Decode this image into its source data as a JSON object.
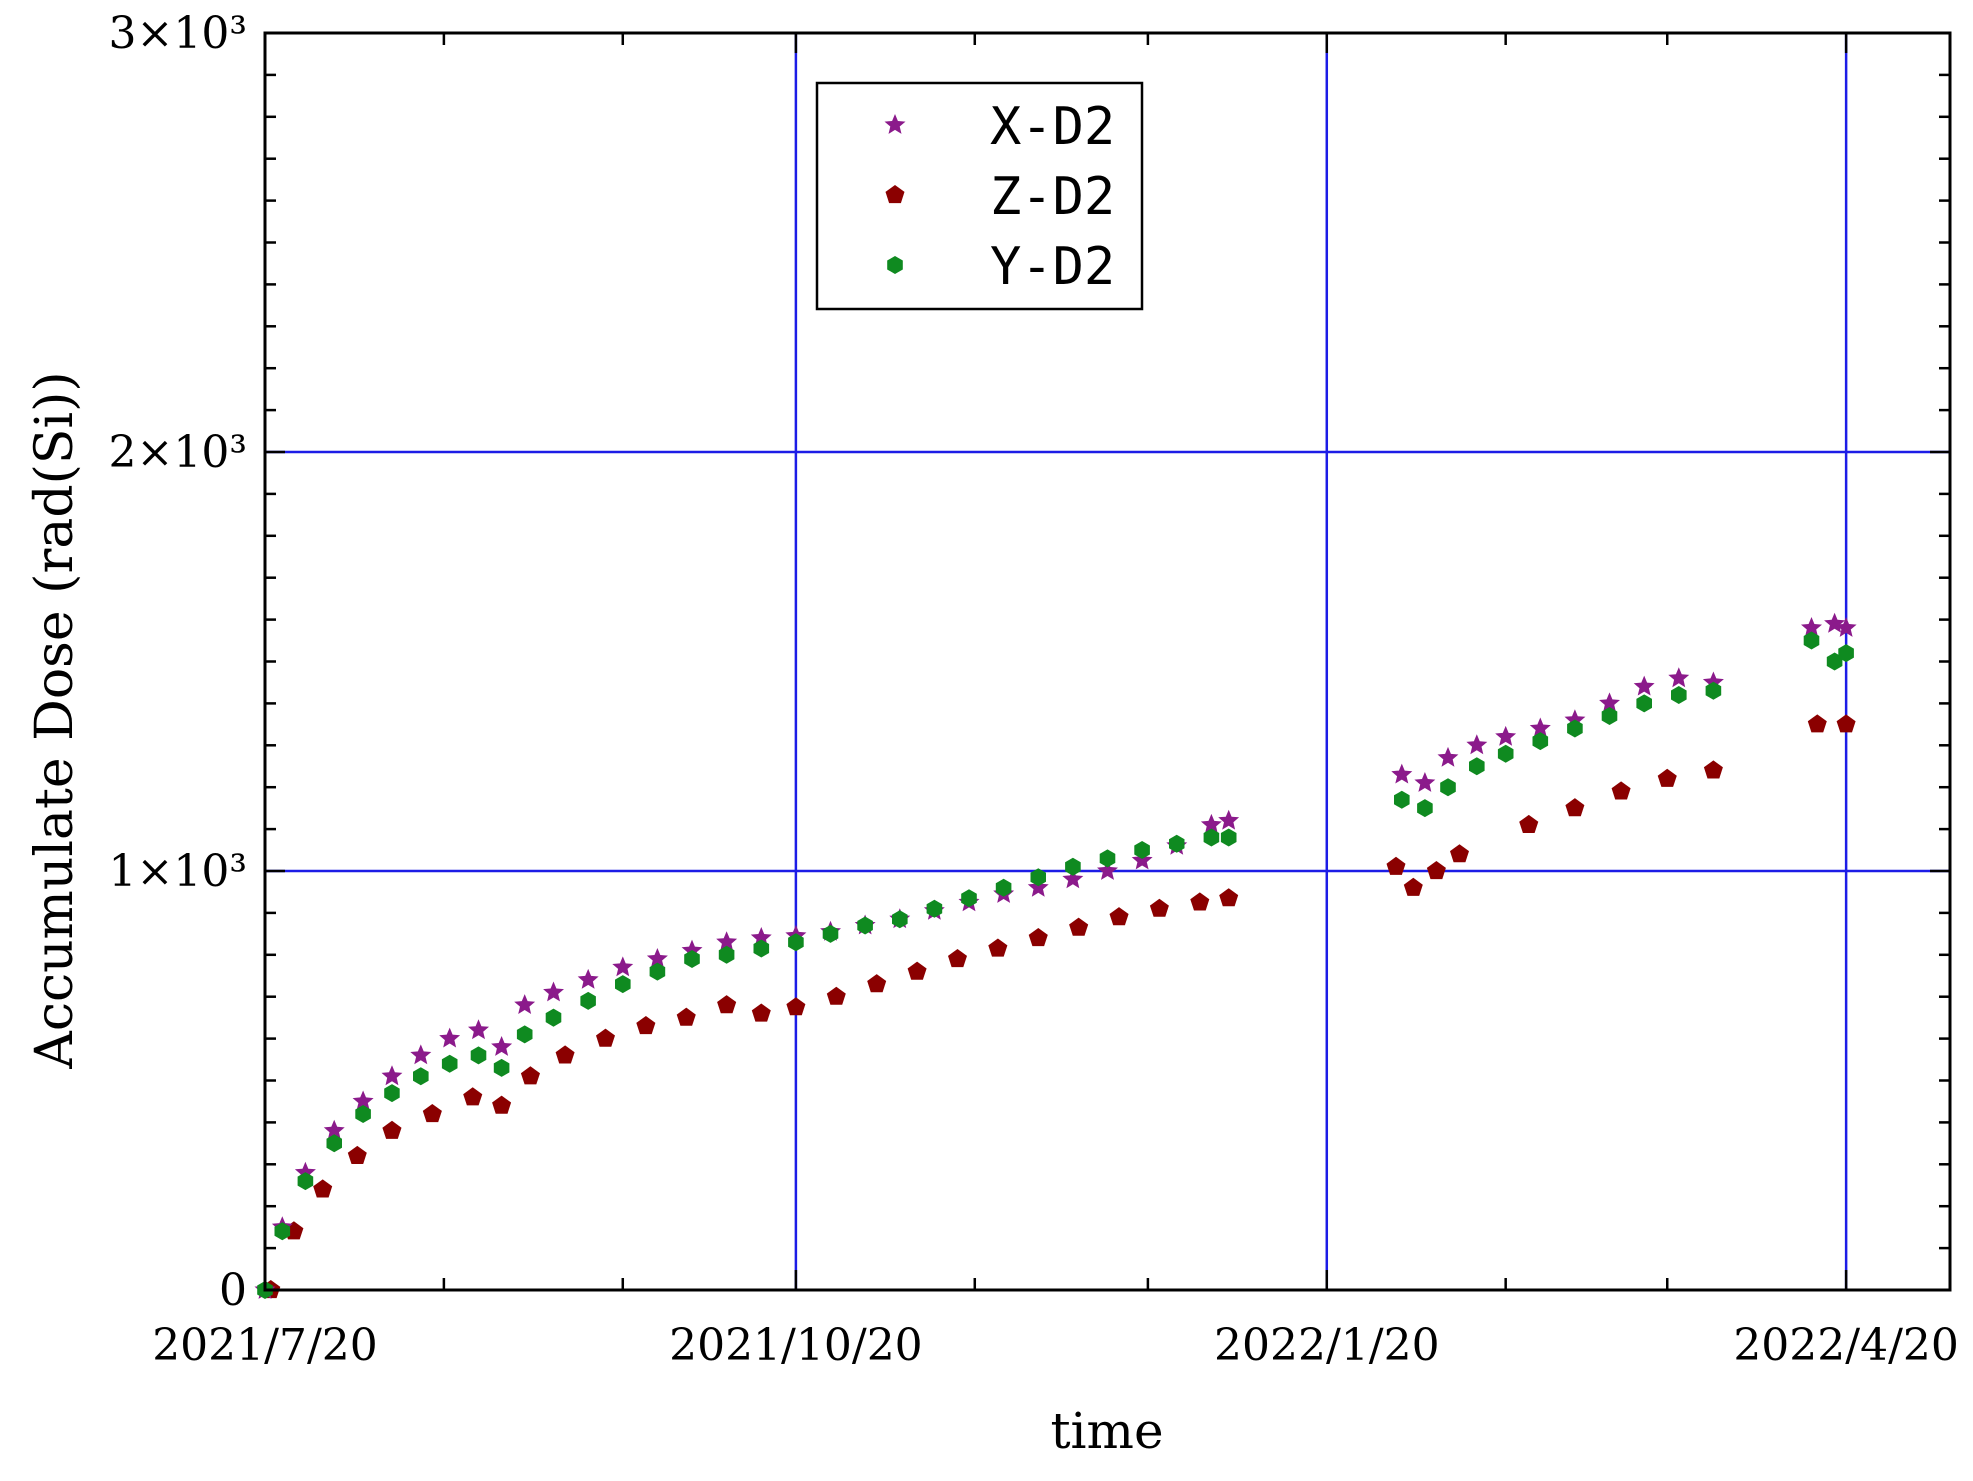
{
  "chart_data": {
    "type": "scatter",
    "title": "",
    "xlabel": "time",
    "ylabel": "Accumulate Dose (rad(Si))",
    "x_axis": {
      "type": "date",
      "range": [
        "2021-07-20",
        "2022-05-08"
      ],
      "ticks": [
        {
          "date": "2021-07-20",
          "label": "2021/7/20"
        },
        {
          "date": "2021-10-20",
          "label": "2021/10/20"
        },
        {
          "date": "2022-01-20",
          "label": "2022/1/20"
        },
        {
          "date": "2022-04-20",
          "label": "2022/4/20"
        }
      ],
      "minor_ticks": [
        "2021-08-20",
        "2021-09-20",
        "2021-11-20",
        "2021-12-20",
        "2022-02-20",
        "2022-03-20"
      ]
    },
    "y_axis": {
      "range": [
        0,
        3000
      ],
      "ticks": [
        {
          "value": 0,
          "label": "0"
        },
        {
          "value": 1000,
          "label": "1×10³"
        },
        {
          "value": 2000,
          "label": "2×10³"
        },
        {
          "value": 3000,
          "label": "3×10³"
        }
      ],
      "minor_step": 100
    },
    "grid": true,
    "grid_color": "#1c1ce6",
    "legend": {
      "position": "top-center"
    },
    "series": [
      {
        "name": "X-D2",
        "marker": "star",
        "color": "#8b1a8b",
        "points": [
          [
            "2021-07-20",
            0
          ],
          [
            "2021-07-23",
            150
          ],
          [
            "2021-07-27",
            280
          ],
          [
            "2021-08-01",
            380
          ],
          [
            "2021-08-06",
            450
          ],
          [
            "2021-08-11",
            510
          ],
          [
            "2021-08-16",
            560
          ],
          [
            "2021-08-21",
            600
          ],
          [
            "2021-08-26",
            620
          ],
          [
            "2021-08-30",
            580
          ],
          [
            "2021-09-03",
            680
          ],
          [
            "2021-09-08",
            710
          ],
          [
            "2021-09-14",
            740
          ],
          [
            "2021-09-20",
            770
          ],
          [
            "2021-09-26",
            790
          ],
          [
            "2021-10-02",
            810
          ],
          [
            "2021-10-08",
            830
          ],
          [
            "2021-10-14",
            840
          ],
          [
            "2021-10-20",
            845
          ],
          [
            "2021-10-26",
            855
          ],
          [
            "2021-11-01",
            870
          ],
          [
            "2021-11-07",
            885
          ],
          [
            "2021-11-13",
            905
          ],
          [
            "2021-11-19",
            925
          ],
          [
            "2021-11-25",
            945
          ],
          [
            "2021-12-01",
            960
          ],
          [
            "2021-12-07",
            980
          ],
          [
            "2021-12-13",
            1000
          ],
          [
            "2021-12-19",
            1025
          ],
          [
            "2021-12-25",
            1060
          ],
          [
            "2021-12-31",
            1110
          ],
          [
            "2022-01-03",
            1120
          ],
          [
            "2022-02-02",
            1230
          ],
          [
            "2022-02-06",
            1210
          ],
          [
            "2022-02-10",
            1270
          ],
          [
            "2022-02-15",
            1300
          ],
          [
            "2022-02-20",
            1320
          ],
          [
            "2022-02-26",
            1340
          ],
          [
            "2022-03-04",
            1360
          ],
          [
            "2022-03-10",
            1400
          ],
          [
            "2022-03-16",
            1440
          ],
          [
            "2022-03-22",
            1460
          ],
          [
            "2022-03-28",
            1450
          ],
          [
            "2022-04-14",
            1580
          ],
          [
            "2022-04-18",
            1590
          ],
          [
            "2022-04-20",
            1580
          ]
        ]
      },
      {
        "name": "Z-D2",
        "marker": "pentagon",
        "color": "#8b0000",
        "points": [
          [
            "2021-07-21",
            0
          ],
          [
            "2021-07-25",
            140
          ],
          [
            "2021-07-30",
            240
          ],
          [
            "2021-08-05",
            320
          ],
          [
            "2021-08-11",
            380
          ],
          [
            "2021-08-18",
            420
          ],
          [
            "2021-08-25",
            460
          ],
          [
            "2021-08-30",
            440
          ],
          [
            "2021-09-04",
            510
          ],
          [
            "2021-09-10",
            560
          ],
          [
            "2021-09-17",
            600
          ],
          [
            "2021-09-24",
            630
          ],
          [
            "2021-10-01",
            650
          ],
          [
            "2021-10-08",
            680
          ],
          [
            "2021-10-14",
            660
          ],
          [
            "2021-10-20",
            675
          ],
          [
            "2021-10-27",
            700
          ],
          [
            "2021-11-03",
            730
          ],
          [
            "2021-11-10",
            760
          ],
          [
            "2021-11-17",
            790
          ],
          [
            "2021-11-24",
            815
          ],
          [
            "2021-12-01",
            840
          ],
          [
            "2021-12-08",
            865
          ],
          [
            "2021-12-15",
            890
          ],
          [
            "2021-12-22",
            910
          ],
          [
            "2021-12-29",
            925
          ],
          [
            "2022-01-03",
            935
          ],
          [
            "2022-02-01",
            1010
          ],
          [
            "2022-02-04",
            960
          ],
          [
            "2022-02-08",
            1000
          ],
          [
            "2022-02-12",
            1040
          ],
          [
            "2022-02-24",
            1110
          ],
          [
            "2022-03-04",
            1150
          ],
          [
            "2022-03-12",
            1190
          ],
          [
            "2022-03-20",
            1220
          ],
          [
            "2022-03-28",
            1240
          ],
          [
            "2022-04-15",
            1350
          ],
          [
            "2022-04-20",
            1350
          ]
        ]
      },
      {
        "name": "Y-D2",
        "marker": "circle",
        "color": "#0f8a20",
        "points": [
          [
            "2021-07-20",
            0
          ],
          [
            "2021-07-23",
            140
          ],
          [
            "2021-07-27",
            260
          ],
          [
            "2021-08-01",
            350
          ],
          [
            "2021-08-06",
            420
          ],
          [
            "2021-08-11",
            470
          ],
          [
            "2021-08-16",
            510
          ],
          [
            "2021-08-21",
            540
          ],
          [
            "2021-08-26",
            560
          ],
          [
            "2021-08-30",
            530
          ],
          [
            "2021-09-03",
            610
          ],
          [
            "2021-09-08",
            650
          ],
          [
            "2021-09-14",
            690
          ],
          [
            "2021-09-20",
            730
          ],
          [
            "2021-09-26",
            760
          ],
          [
            "2021-10-02",
            790
          ],
          [
            "2021-10-08",
            800
          ],
          [
            "2021-10-14",
            815
          ],
          [
            "2021-10-20",
            830
          ],
          [
            "2021-10-26",
            850
          ],
          [
            "2021-11-01",
            870
          ],
          [
            "2021-11-07",
            885
          ],
          [
            "2021-11-13",
            910
          ],
          [
            "2021-11-19",
            935
          ],
          [
            "2021-11-25",
            960
          ],
          [
            "2021-12-01",
            985
          ],
          [
            "2021-12-07",
            1010
          ],
          [
            "2021-12-13",
            1030
          ],
          [
            "2021-12-19",
            1050
          ],
          [
            "2021-12-25",
            1065
          ],
          [
            "2021-12-31",
            1080
          ],
          [
            "2022-01-03",
            1080
          ],
          [
            "2022-02-02",
            1170
          ],
          [
            "2022-02-06",
            1150
          ],
          [
            "2022-02-10",
            1200
          ],
          [
            "2022-02-15",
            1250
          ],
          [
            "2022-02-20",
            1280
          ],
          [
            "2022-02-26",
            1310
          ],
          [
            "2022-03-04",
            1340
          ],
          [
            "2022-03-10",
            1370
          ],
          [
            "2022-03-16",
            1400
          ],
          [
            "2022-03-22",
            1420
          ],
          [
            "2022-03-28",
            1430
          ],
          [
            "2022-04-14",
            1550
          ],
          [
            "2022-04-18",
            1500
          ],
          [
            "2022-04-20",
            1520
          ]
        ]
      }
    ]
  }
}
